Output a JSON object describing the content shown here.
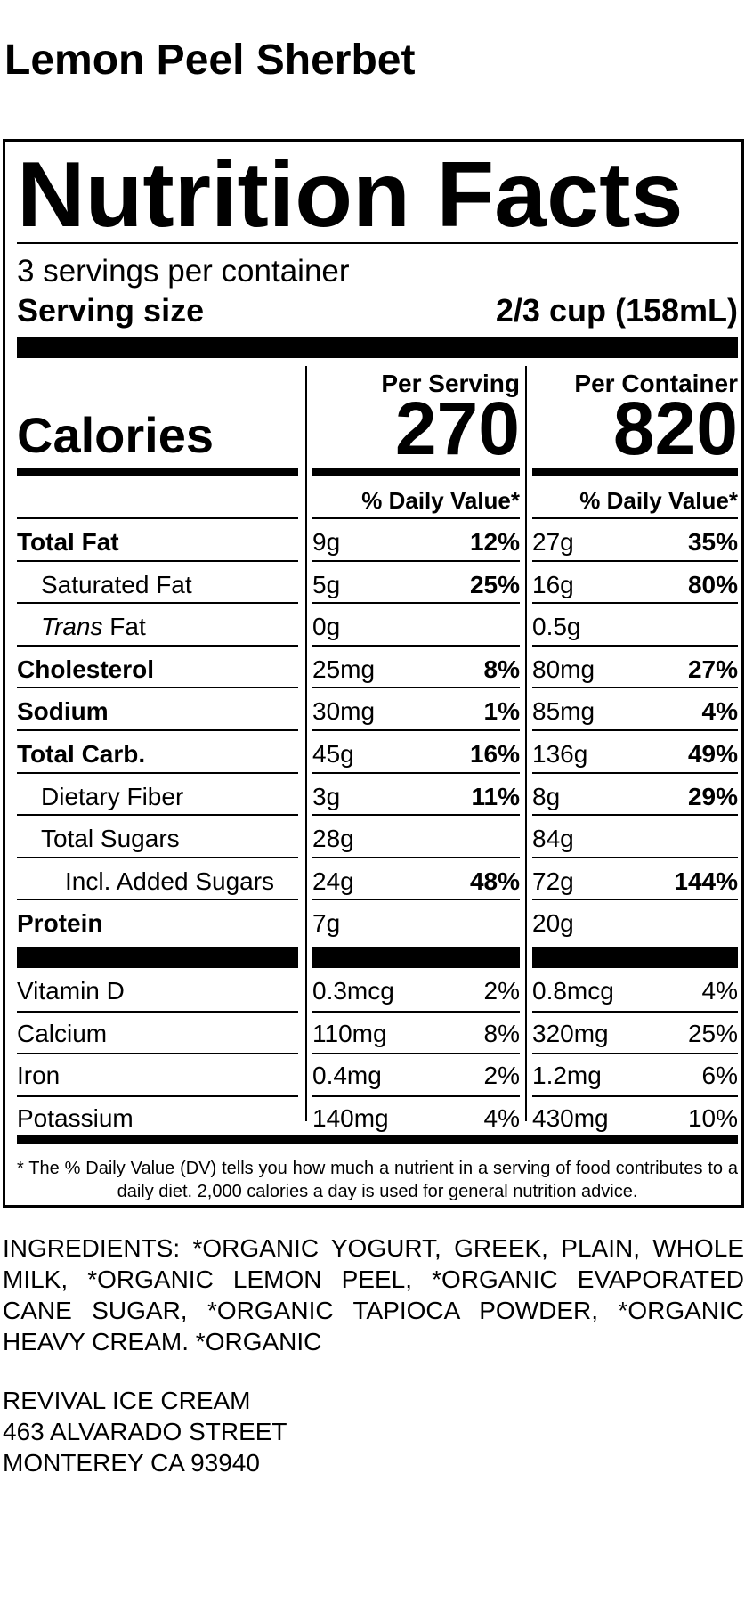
{
  "product": {
    "name": "Lemon Peel Sherbet"
  },
  "label": {
    "title": "Nutrition Facts",
    "servings_per_container": "3 servings per container",
    "serving_size_label": "Serving size",
    "serving_size_value": "2/3 cup (158mL)",
    "per_serving_label": "Per Serving",
    "per_container_label": "Per Container",
    "calories_label": "Calories",
    "calories_per_serving": "270",
    "calories_per_container": "820",
    "dv_header": "% Daily Value*",
    "nutrients": [
      {
        "name": "Total Fat",
        "style": "bold",
        "serv_amt": "9g",
        "serv_dv": "12%",
        "cont_amt": "27g",
        "cont_dv": "35%"
      },
      {
        "name": "Saturated Fat",
        "style": "indent1",
        "serv_amt": "5g",
        "serv_dv": "25%",
        "cont_amt": "16g",
        "cont_dv": "80%"
      },
      {
        "name_italic": "Trans",
        "name": " Fat",
        "style": "indent1",
        "serv_amt": "0g",
        "serv_dv": "",
        "cont_amt": "0.5g",
        "cont_dv": ""
      },
      {
        "name": "Cholesterol",
        "style": "bold",
        "serv_amt": "25mg",
        "serv_dv": "8%",
        "cont_amt": "80mg",
        "cont_dv": "27%"
      },
      {
        "name": "Sodium",
        "style": "bold",
        "serv_amt": "30mg",
        "serv_dv": "1%",
        "cont_amt": "85mg",
        "cont_dv": "4%"
      },
      {
        "name": "Total Carb.",
        "style": "bold",
        "serv_amt": "45g",
        "serv_dv": "16%",
        "cont_amt": "136g",
        "cont_dv": "49%"
      },
      {
        "name": "Dietary Fiber",
        "style": "indent1",
        "serv_amt": "3g",
        "serv_dv": "11%",
        "cont_amt": "8g",
        "cont_dv": "29%"
      },
      {
        "name": "Total Sugars",
        "style": "indent1",
        "serv_amt": "28g",
        "serv_dv": "",
        "cont_amt": "84g",
        "cont_dv": ""
      },
      {
        "name": "Incl. Added Sugars",
        "style": "indent2",
        "serv_amt": "24g",
        "serv_dv": "48%",
        "cont_amt": "72g",
        "cont_dv": "144%"
      },
      {
        "name": "Protein",
        "style": "bold",
        "serv_amt": "7g",
        "serv_dv": "",
        "cont_amt": "20g",
        "cont_dv": ""
      }
    ],
    "vitamins": [
      {
        "name": "Vitamin D",
        "serv_amt": "0.3mcg",
        "serv_dv": "2%",
        "cont_amt": "0.8mcg",
        "cont_dv": "4%"
      },
      {
        "name": "Calcium",
        "serv_amt": "110mg",
        "serv_dv": "8%",
        "cont_amt": "320mg",
        "cont_dv": "25%"
      },
      {
        "name": "Iron",
        "serv_amt": "0.4mg",
        "serv_dv": "2%",
        "cont_amt": "1.2mg",
        "cont_dv": "6%"
      },
      {
        "name": "Potassium",
        "serv_amt": "140mg",
        "serv_dv": "4%",
        "cont_amt": "430mg",
        "cont_dv": "10%"
      }
    ],
    "footnote": "* The % Daily Value (DV) tells you how much a nutrient in a serving of food contributes to a daily diet. 2,000 calories a day is used for general nutrition advice."
  },
  "ingredients": "INGREDIENTS: *ORGANIC YOGURT, GREEK, PLAIN, WHOLE MILK, *ORGANIC LEMON PEEL, *ORGANIC EVAPORATED CANE SUGAR, *ORGANIC TAPIOCA POWDER, *ORGANIC HEAVY CREAM. *ORGANIC",
  "address": {
    "line1": "REVIVAL ICE CREAM",
    "line2": "463 ALVARADO STREET",
    "line3": "MONTEREY CA 93940"
  }
}
